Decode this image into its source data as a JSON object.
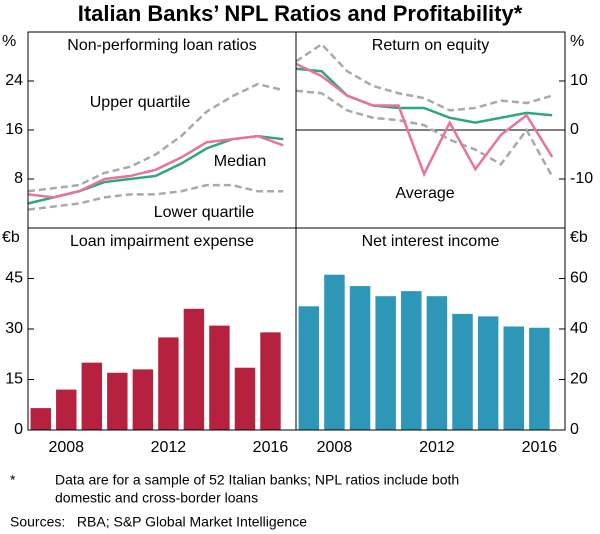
{
  "title": "Italian Banks’ NPL Ratios and Profitability*",
  "chart_data": [
    {
      "type": "line",
      "title": "Non-performing loan ratios",
      "y_label": "%",
      "axis_side": "left",
      "x": [
        2006.5,
        2007.5,
        2008.5,
        2009.5,
        2010.5,
        2011.5,
        2012.5,
        2013.5,
        2014.5,
        2015.5,
        2016.5
      ],
      "xlim": [
        2006.5,
        2017
      ],
      "ylim": [
        0,
        32
      ],
      "yticks": [
        8,
        16,
        24
      ],
      "series": [
        {
          "name": "Upper quartile",
          "color": "#a7a9ac",
          "dash": true,
          "values": [
            6,
            6.5,
            7,
            9,
            10,
            12,
            15,
            19,
            21.5,
            23.5,
            22.5
          ]
        },
        {
          "name": "Lower quartile",
          "color": "#a7a9ac",
          "dash": true,
          "values": [
            3,
            3.5,
            4,
            5,
            5.5,
            5.5,
            6,
            7,
            7,
            6,
            6
          ]
        },
        {
          "name": "Median",
          "color": "#2ea87a",
          "values": [
            4,
            5,
            6,
            7.5,
            8,
            8.5,
            10.5,
            13,
            14.5,
            15,
            14.5
          ]
        },
        {
          "color": "#e8739c",
          "values": [
            5.5,
            5,
            6,
            8,
            8.5,
            9.5,
            11.5,
            14,
            14.5,
            15,
            13.5
          ]
        }
      ]
    },
    {
      "type": "line",
      "title": "Return on equity",
      "y_label": "%",
      "axis_side": "right",
      "zero_line": true,
      "x": [
        2006.5,
        2007.5,
        2008.5,
        2009.5,
        2010.5,
        2011.5,
        2012.5,
        2013.5,
        2014.5,
        2015.5,
        2016.5
      ],
      "xlim": [
        2006.5,
        2017
      ],
      "ylim": [
        -20,
        20
      ],
      "yticks": [
        -10,
        0,
        10
      ],
      "series": [
        {
          "color": "#a7a9ac",
          "dash": true,
          "values": [
            14,
            17.5,
            12,
            9,
            7.5,
            6.5,
            4,
            4.5,
            6,
            5.5,
            7
          ]
        },
        {
          "color": "#a7a9ac",
          "dash": true,
          "values": [
            8,
            7.5,
            4,
            2.5,
            2,
            1,
            -2,
            -4,
            -7,
            0,
            -9.5
          ]
        },
        {
          "color": "#2ea87a",
          "values": [
            12.5,
            12,
            7,
            5,
            4.5,
            4.5,
            2.5,
            1.5,
            2.5,
            3.5,
            3
          ]
        },
        {
          "name": "Average",
          "color": "#e8739c",
          "values": [
            13.5,
            11,
            7,
            5,
            5,
            -9,
            1.5,
            -8,
            -1,
            3,
            -5.5
          ]
        }
      ]
    },
    {
      "type": "bar",
      "title": "Loan impairment expense",
      "y_label": "€b",
      "axis_side": "left",
      "color": "#b5213f",
      "x": [
        2007,
        2008,
        2009,
        2010,
        2011,
        2012,
        2013,
        2014,
        2015,
        2016
      ],
      "values": [
        6.5,
        12,
        20,
        17,
        18,
        27.5,
        36,
        31,
        18.5,
        29
      ],
      "xlim": [
        2006.5,
        2017
      ],
      "xticks": [
        2008,
        2012,
        2016
      ],
      "ylim": [
        0,
        60
      ],
      "yticks": [
        0,
        15,
        30,
        45
      ]
    },
    {
      "type": "bar",
      "title": "Net interest income",
      "y_label": "€b",
      "axis_side": "right",
      "color": "#2e97b8",
      "x": [
        2007,
        2008,
        2009,
        2010,
        2011,
        2012,
        2013,
        2014,
        2015,
        2016
      ],
      "values": [
        49,
        61.5,
        57,
        53,
        55,
        53,
        46,
        45,
        41,
        40.5
      ],
      "xlim": [
        2006.5,
        2017
      ],
      "xticks": [
        2008,
        2012,
        2016
      ],
      "ylim": [
        0,
        80
      ],
      "yticks": [
        0,
        20,
        40,
        60
      ]
    }
  ],
  "footnote": {
    "marker": "*",
    "lines": [
      "Data are for a sample of 52 Italian banks; NPL ratios include both",
      "domestic and cross-border loans"
    ]
  },
  "sources": "Sources:   RBA; S&P Global Market Intelligence"
}
